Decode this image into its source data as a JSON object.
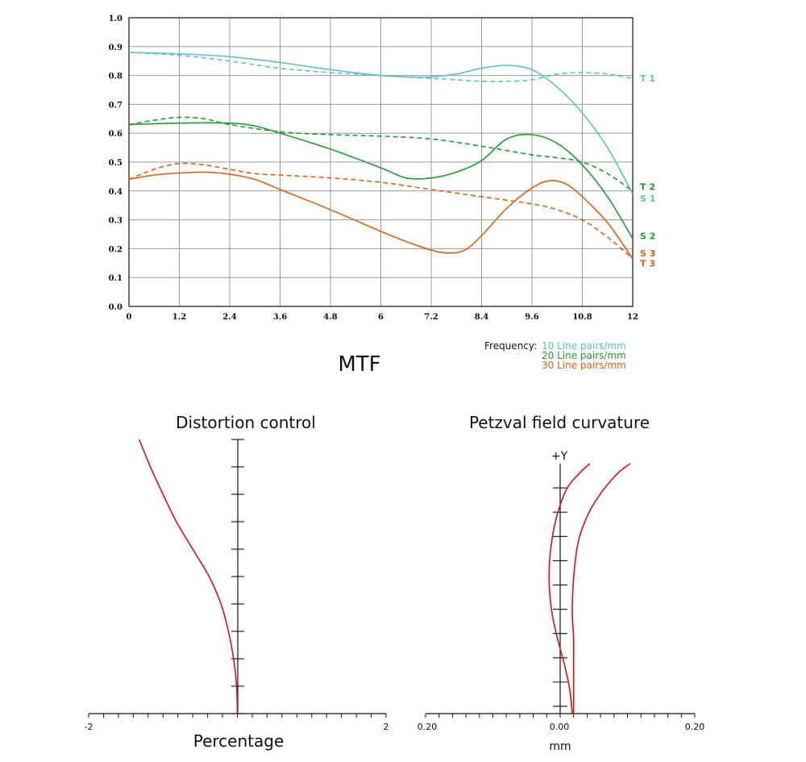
{
  "chart_data": [
    {
      "type": "line",
      "title": "MTF",
      "xlabel": "",
      "ylabel": "",
      "xlim": [
        0,
        12
      ],
      "ylim": [
        0,
        1.0
      ],
      "grid": true,
      "x_ticks": [
        "0",
        "1.2",
        "2.4",
        "3.6",
        "4.8",
        "6",
        "7.2",
        "8.4",
        "9.6",
        "10.8",
        "12"
      ],
      "y_ticks": [
        "0.0",
        "0.1",
        "0.2",
        "0.3",
        "0.4",
        "0.5",
        "0.6",
        "0.7",
        "0.8",
        "0.9",
        "1.0"
      ],
      "legend": {
        "title": "Frequency:",
        "placement": "bottom-right",
        "entries": [
          {
            "label": "10 Line pairs/mm",
            "color": "#5bc0d0"
          },
          {
            "label": "20 Line pairs/mm",
            "color": "#1e9e2e"
          },
          {
            "label": "30 Line pairs/mm",
            "color": "#e06010"
          }
        ]
      },
      "series": [
        {
          "name": "T1",
          "color": "#5bc0d0",
          "style": "dashed",
          "points": [
            [
              0,
              0.88
            ],
            [
              1.2,
              0.87
            ],
            [
              2.4,
              0.85
            ],
            [
              3.6,
              0.825
            ],
            [
              4.8,
              0.81
            ],
            [
              6,
              0.8
            ],
            [
              7.2,
              0.79
            ],
            [
              8.4,
              0.78
            ],
            [
              9.0,
              0.78
            ],
            [
              9.6,
              0.785
            ],
            [
              10.2,
              0.805
            ],
            [
              10.8,
              0.81
            ],
            [
              11.4,
              0.805
            ],
            [
              12,
              0.79
            ]
          ]
        },
        {
          "name": "S1",
          "color": "#5bc0d0",
          "style": "solid",
          "points": [
            [
              0,
              0.88
            ],
            [
              1.2,
              0.875
            ],
            [
              2.4,
              0.865
            ],
            [
              3.6,
              0.845
            ],
            [
              4.8,
              0.82
            ],
            [
              6,
              0.8
            ],
            [
              6.6,
              0.795
            ],
            [
              7.2,
              0.795
            ],
            [
              7.8,
              0.805
            ],
            [
              8.4,
              0.825
            ],
            [
              9.0,
              0.835
            ],
            [
              9.6,
              0.82
            ],
            [
              10.2,
              0.76
            ],
            [
              10.8,
              0.67
            ],
            [
              11.4,
              0.55
            ],
            [
              12,
              0.39
            ]
          ]
        },
        {
          "name": "T2",
          "color": "#1e9e2e",
          "style": "dashed",
          "points": [
            [
              0,
              0.63
            ],
            [
              0.6,
              0.645
            ],
            [
              1.2,
              0.655
            ],
            [
              1.8,
              0.65
            ],
            [
              2.4,
              0.63
            ],
            [
              3.6,
              0.605
            ],
            [
              4.8,
              0.595
            ],
            [
              6,
              0.59
            ],
            [
              7.2,
              0.58
            ],
            [
              8.4,
              0.555
            ],
            [
              9.6,
              0.525
            ],
            [
              10.2,
              0.515
            ],
            [
              10.8,
              0.5
            ],
            [
              11.4,
              0.46
            ],
            [
              12,
              0.4
            ]
          ]
        },
        {
          "name": "S2",
          "color": "#1e9e2e",
          "style": "solid",
          "points": [
            [
              0,
              0.63
            ],
            [
              1.2,
              0.635
            ],
            [
              2.4,
              0.635
            ],
            [
              3.0,
              0.625
            ],
            [
              3.6,
              0.6
            ],
            [
              4.8,
              0.545
            ],
            [
              6,
              0.48
            ],
            [
              6.6,
              0.445
            ],
            [
              7.2,
              0.445
            ],
            [
              7.8,
              0.465
            ],
            [
              8.4,
              0.505
            ],
            [
              9.0,
              0.58
            ],
            [
              9.6,
              0.595
            ],
            [
              10.2,
              0.565
            ],
            [
              10.8,
              0.49
            ],
            [
              11.4,
              0.38
            ],
            [
              12,
              0.235
            ]
          ]
        },
        {
          "name": "T3",
          "color": "#e06010",
          "style": "dashed",
          "points": [
            [
              0,
              0.44
            ],
            [
              0.6,
              0.475
            ],
            [
              1.2,
              0.495
            ],
            [
              1.8,
              0.49
            ],
            [
              2.4,
              0.475
            ],
            [
              3.0,
              0.46
            ],
            [
              3.6,
              0.455
            ],
            [
              4.8,
              0.445
            ],
            [
              6,
              0.43
            ],
            [
              7.2,
              0.405
            ],
            [
              8.4,
              0.38
            ],
            [
              9.6,
              0.355
            ],
            [
              10.2,
              0.335
            ],
            [
              10.8,
              0.3
            ],
            [
              11.4,
              0.24
            ],
            [
              12,
              0.165
            ]
          ]
        },
        {
          "name": "S3",
          "color": "#e06010",
          "style": "solid",
          "points": [
            [
              0,
              0.44
            ],
            [
              0.6,
              0.455
            ],
            [
              1.2,
              0.462
            ],
            [
              1.8,
              0.465
            ],
            [
              2.4,
              0.458
            ],
            [
              3.0,
              0.44
            ],
            [
              3.6,
              0.405
            ],
            [
              4.8,
              0.335
            ],
            [
              6,
              0.26
            ],
            [
              6.6,
              0.225
            ],
            [
              7.2,
              0.195
            ],
            [
              7.6,
              0.185
            ],
            [
              8.0,
              0.195
            ],
            [
              8.4,
              0.245
            ],
            [
              9.0,
              0.34
            ],
            [
              9.6,
              0.41
            ],
            [
              10.0,
              0.435
            ],
            [
              10.4,
              0.425
            ],
            [
              10.8,
              0.38
            ],
            [
              11.4,
              0.29
            ],
            [
              12,
              0.165
            ]
          ]
        }
      ],
      "end_labels": [
        {
          "text": "T1",
          "y": 0.79,
          "color": "#5bc0d0"
        },
        {
          "text": "T2",
          "y": 0.415,
          "color": "#1e9e2e"
        },
        {
          "text": "S1",
          "y": 0.375,
          "color": "#5bc0d0"
        },
        {
          "text": "S2",
          "y": 0.245,
          "color": "#1e9e2e"
        },
        {
          "text": "S3",
          "y": 0.185,
          "color": "#e06010"
        },
        {
          "text": "T3",
          "y": 0.15,
          "color": "#e06010"
        }
      ]
    },
    {
      "type": "line",
      "title": "Distortion control",
      "xlabel": "Percentage",
      "xlim": [
        -2,
        2
      ],
      "ylim": [
        0,
        1
      ],
      "x_ticks": [
        "-2",
        "2"
      ],
      "color": "#e01010",
      "points": [
        [
          0,
          0
        ],
        [
          -0.01,
          0.1
        ],
        [
          -0.05,
          0.2
        ],
        [
          -0.12,
          0.3
        ],
        [
          -0.22,
          0.4
        ],
        [
          -0.38,
          0.5
        ],
        [
          -0.6,
          0.6
        ],
        [
          -0.82,
          0.7
        ],
        [
          -1.0,
          0.8
        ],
        [
          -1.17,
          0.9
        ],
        [
          -1.32,
          1.0
        ]
      ]
    },
    {
      "type": "line",
      "title": "Petzval field curvature",
      "xlabel": "mm",
      "y_axis_label": "+Y",
      "xlim": [
        -0.2,
        0.2
      ],
      "ylim": [
        0,
        1
      ],
      "x_ticks": [
        "0.20",
        "0.00",
        "0.20"
      ],
      "color": "#e01010",
      "series": [
        {
          "name": "",
          "points": [
            [
              0.018,
              0
            ],
            [
              0.014,
              0.1
            ],
            [
              0.006,
              0.2
            ],
            [
              -0.004,
              0.3
            ],
            [
              -0.012,
              0.4
            ],
            [
              -0.016,
              0.5
            ],
            [
              -0.016,
              0.6
            ],
            [
              -0.012,
              0.7
            ],
            [
              -0.004,
              0.8
            ],
            [
              0.01,
              0.9
            ],
            [
              0.028,
              0.96
            ],
            [
              0.044,
              1.0
            ]
          ]
        },
        {
          "name": "",
          "points": [
            [
              0.02,
              0
            ],
            [
              0.02,
              0.1
            ],
            [
              0.02,
              0.2
            ],
            [
              0.02,
              0.3
            ],
            [
              0.018,
              0.4
            ],
            [
              0.019,
              0.5
            ],
            [
              0.022,
              0.6
            ],
            [
              0.028,
              0.7
            ],
            [
              0.042,
              0.8
            ],
            [
              0.06,
              0.88
            ],
            [
              0.085,
              0.96
            ],
            [
              0.104,
              1.0
            ]
          ]
        }
      ]
    }
  ]
}
